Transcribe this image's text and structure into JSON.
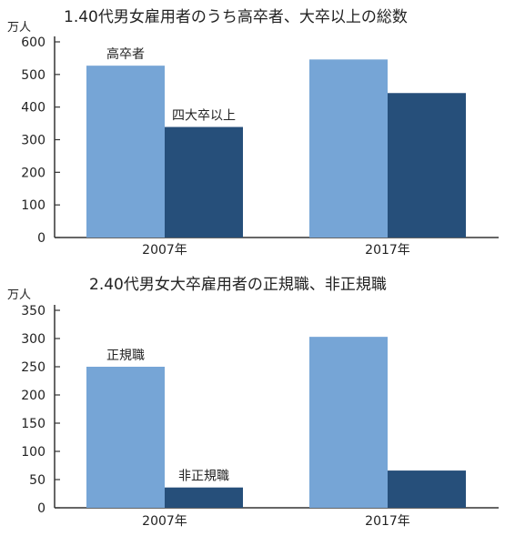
{
  "colors": {
    "light_bar": "#76a5d6",
    "dark_bar": "#264f7a",
    "axis": "#333333",
    "text": "#222222"
  },
  "chart_data": [
    {
      "type": "bar",
      "title": "1.40代男女雇用者のうち高卒者、大卒以上の総数",
      "unit": "万人",
      "categories": [
        "2007年",
        "2017年"
      ],
      "ylim": [
        0,
        600
      ],
      "yticks": [
        0,
        100,
        200,
        300,
        400,
        500,
        600
      ],
      "grid": false,
      "series": [
        {
          "name": "高卒者",
          "values": [
            527,
            546
          ]
        },
        {
          "name": "四大卒以上",
          "values": [
            339,
            443
          ]
        }
      ]
    },
    {
      "type": "bar",
      "title": "2.40代男女大卒雇用者の正規職、非正規職",
      "unit": "万人",
      "categories": [
        "2007年",
        "2017年"
      ],
      "ylim": [
        0,
        350
      ],
      "yticks": [
        0,
        50,
        100,
        150,
        200,
        250,
        300,
        350
      ],
      "grid": false,
      "series": [
        {
          "name": "正規職",
          "values": [
            250,
            303
          ]
        },
        {
          "name": "非正規職",
          "values": [
            36,
            66
          ]
        }
      ]
    }
  ]
}
